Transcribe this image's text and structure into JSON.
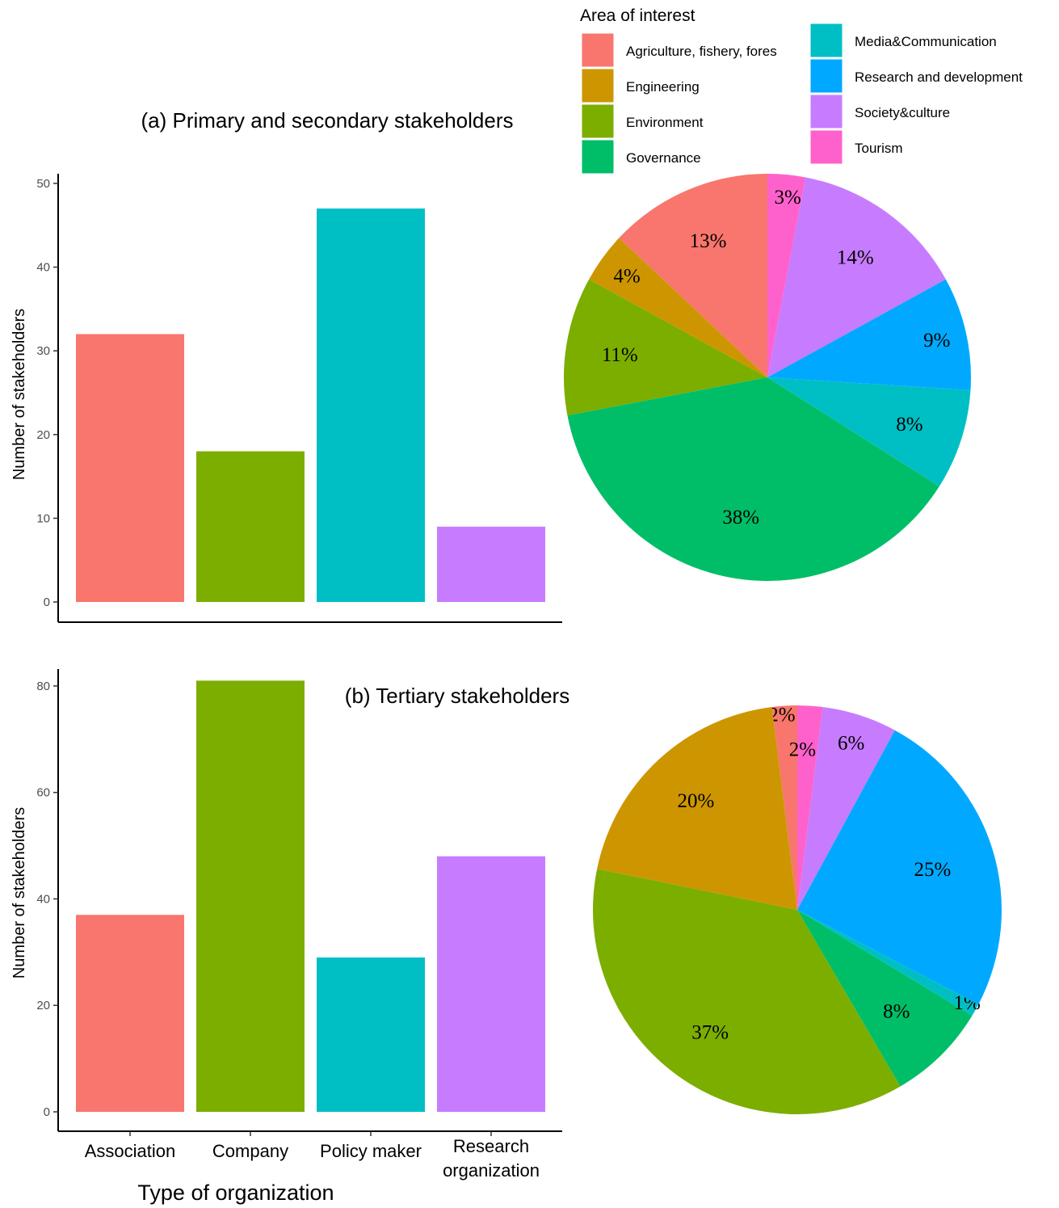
{
  "legend": {
    "title": "Area of interest",
    "items": [
      {
        "label": "Agriculture, fishery, fores",
        "color": "#F8766D"
      },
      {
        "label": "Engineering",
        "color": "#CD9600"
      },
      {
        "label": "Environment",
        "color": "#7CAE00"
      },
      {
        "label": "Governance",
        "color": "#00BE67"
      },
      {
        "label": "Media&Communication",
        "color": "#00BFC4"
      },
      {
        "label": "Research and development",
        "color": "#00A9FF"
      },
      {
        "label": "Society&culture",
        "color": "#C77CFF"
      },
      {
        "label": "Tourism",
        "color": "#FF61CC"
      }
    ]
  },
  "chart_data": [
    {
      "type": "bar",
      "title": "(a) Primary and secondary stakeholders",
      "xlabel": "",
      "ylabel": "Number of stakeholders",
      "categories": [
        "Association",
        "Company",
        "Policy maker",
        "Research organization"
      ],
      "values": [
        32,
        18,
        47,
        9
      ],
      "colors": [
        "#F8766D",
        "#7CAE00",
        "#00BFC4",
        "#C77CFF"
      ],
      "ylim": [
        0,
        50
      ],
      "yticks": [
        0,
        10,
        20,
        30,
        40,
        50
      ],
      "grid": false
    },
    {
      "type": "pie",
      "title": "(a) Primary and secondary stakeholders",
      "categories": [
        "Agriculture, fishery, fores",
        "Engineering",
        "Environment",
        "Governance",
        "Media&Communication",
        "Research and development",
        "Society&culture",
        "Tourism"
      ],
      "values": [
        13,
        4,
        11,
        38,
        8,
        9,
        14,
        3
      ],
      "labels": [
        "13%",
        "4%",
        "11%",
        "38%",
        "8%",
        "9%",
        "14%",
        "3%"
      ]
    },
    {
      "type": "bar",
      "title": "(b) Tertiary stakeholders",
      "xlabel": "Type of organization",
      "ylabel": "Number of stakeholders",
      "categories": [
        "Association",
        "Company",
        "Policy maker",
        "Research organization"
      ],
      "category_lines": [
        [
          "Association"
        ],
        [
          "Company"
        ],
        [
          "Policy maker"
        ],
        [
          "Research",
          "organization"
        ]
      ],
      "values": [
        37,
        81,
        29,
        48
      ],
      "colors": [
        "#F8766D",
        "#7CAE00",
        "#00BFC4",
        "#C77CFF"
      ],
      "ylim": [
        0,
        85
      ],
      "yticks": [
        0,
        20,
        40,
        60,
        80
      ],
      "grid": false
    },
    {
      "type": "pie",
      "title": "(b) Tertiary stakeholders",
      "categories": [
        "Agriculture, fishery, fores",
        "Engineering",
        "Environment",
        "Governance",
        "Media&Communication",
        "Research and development",
        "Society&culture",
        "Tourism"
      ],
      "values": [
        2,
        20,
        37,
        8,
        1,
        25,
        6,
        2
      ],
      "labels": [
        "2%",
        "20%",
        "37%",
        "8%",
        "1%",
        "25%",
        "6%",
        "2%"
      ]
    }
  ]
}
